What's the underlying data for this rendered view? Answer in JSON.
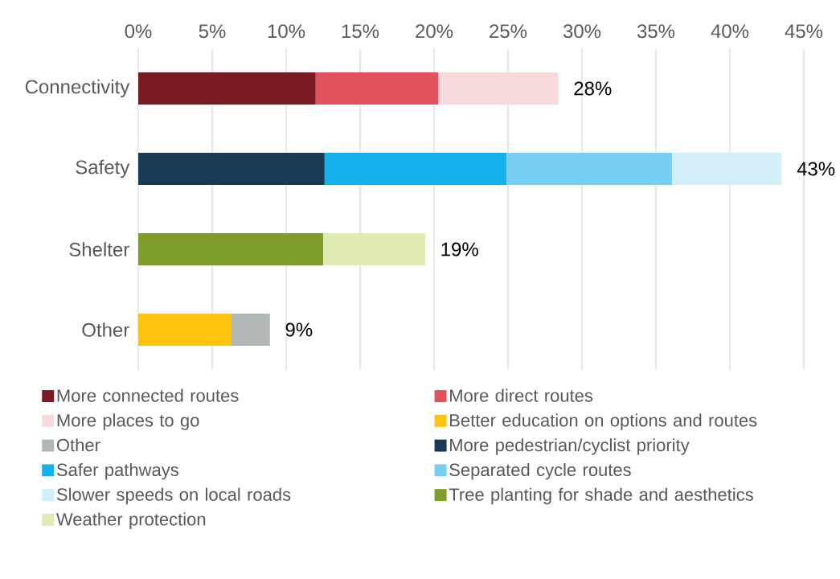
{
  "chart_data": {
    "type": "bar",
    "orientation": "horizontal",
    "stacked": true,
    "categories": [
      "Connectivity",
      "Safety",
      "Shelter",
      "Other"
    ],
    "series": [
      {
        "name": "More connected routes",
        "color": "#7b1a22",
        "values": [
          12.0,
          null,
          null,
          null
        ]
      },
      {
        "name": "More direct routes",
        "color": "#e0525c",
        "values": [
          8.3,
          null,
          null,
          null
        ]
      },
      {
        "name": "More places to go",
        "color": "#f8d9dc",
        "values": [
          8.1,
          null,
          null,
          null
        ]
      },
      {
        "name": "Better education on options and routes",
        "color": "#fdc30f",
        "values": [
          null,
          null,
          null,
          6.3
        ]
      },
      {
        "name": "Other",
        "color": "#b1b6b6",
        "values": [
          null,
          null,
          null,
          2.6
        ]
      },
      {
        "name": "More pedestrian/cyclist priority",
        "color": "#173a56",
        "values": [
          null,
          12.6,
          null,
          null
        ]
      },
      {
        "name": "Safer pathways",
        "color": "#16b1ec",
        "values": [
          null,
          12.3,
          null,
          null
        ]
      },
      {
        "name": "Separated cycle routes",
        "color": "#74cff3",
        "values": [
          null,
          11.2,
          null,
          null
        ]
      },
      {
        "name": "Slower speeds on local roads",
        "color": "#d1eef9",
        "values": [
          null,
          7.4,
          null,
          null
        ]
      },
      {
        "name": "Tree planting for shade and aesthetics",
        "color": "#7f9d2a",
        "values": [
          null,
          null,
          12.5,
          null
        ]
      },
      {
        "name": "Weather protection",
        "color": "#dfebb3",
        "values": [
          null,
          null,
          6.9,
          null
        ]
      }
    ],
    "totals": [
      "28%",
      "43%",
      "19%",
      "9%"
    ],
    "xlim": [
      0,
      45
    ],
    "xticks": [
      {
        "value": 0,
        "label": "0%"
      },
      {
        "value": 5,
        "label": "5%"
      },
      {
        "value": 10,
        "label": "10%"
      },
      {
        "value": 15,
        "label": "15%"
      },
      {
        "value": 20,
        "label": "20%"
      },
      {
        "value": 25,
        "label": "25%"
      },
      {
        "value": 30,
        "label": "30%"
      },
      {
        "value": 35,
        "label": "35%"
      },
      {
        "value": 40,
        "label": "40%"
      },
      {
        "value": 45,
        "label": "45%"
      }
    ],
    "grid": "x",
    "legend": "bottom"
  }
}
